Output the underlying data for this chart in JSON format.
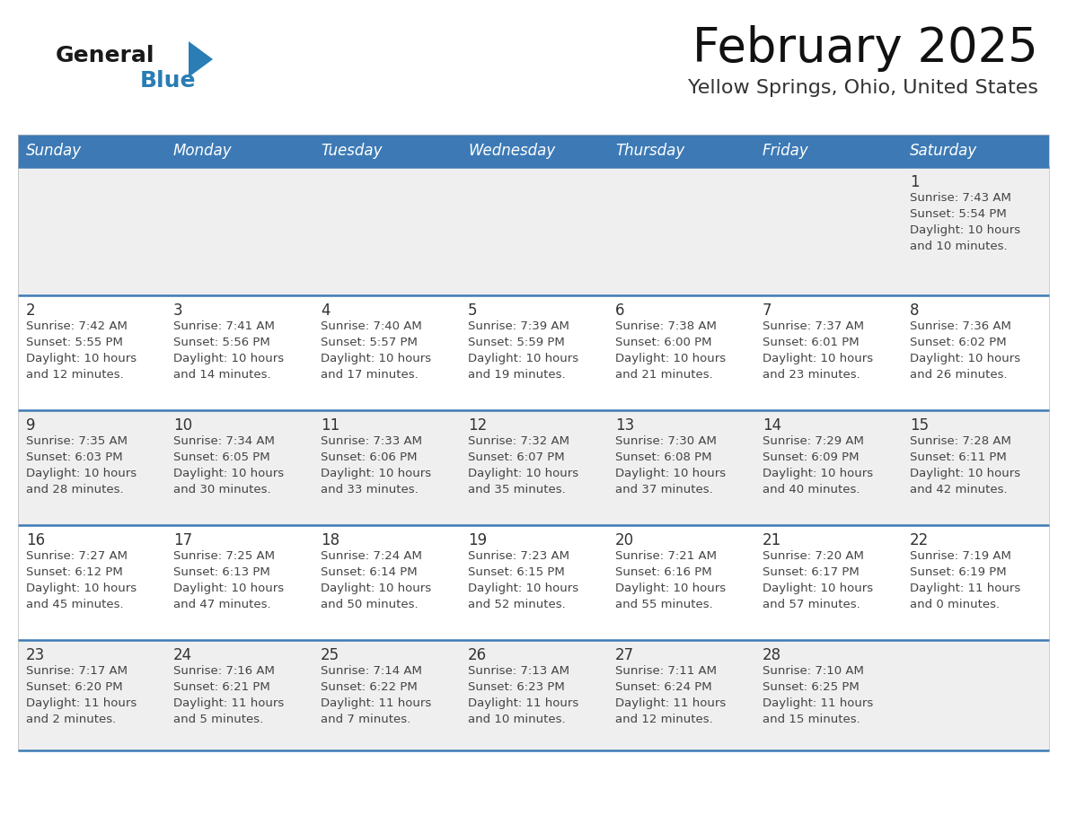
{
  "title": "February 2025",
  "subtitle": "Yellow Springs, Ohio, United States",
  "days_of_week": [
    "Sunday",
    "Monday",
    "Tuesday",
    "Wednesday",
    "Thursday",
    "Friday",
    "Saturday"
  ],
  "header_bg": "#3d7ab5",
  "header_text_color": "#ffffff",
  "row_bg_odd": "#efefef",
  "row_bg_even": "#ffffff",
  "cell_text_color": "#444444",
  "day_number_color": "#333333",
  "divider_color": "#3d7ab5",
  "logo_general_color": "#1a1a1a",
  "logo_blue_color": "#2a7db5",
  "fig_width": 11.88,
  "fig_height": 9.18,
  "dpi": 100,
  "calendar_data": [
    [
      {
        "day": null,
        "info": null
      },
      {
        "day": null,
        "info": null
      },
      {
        "day": null,
        "info": null
      },
      {
        "day": null,
        "info": null
      },
      {
        "day": null,
        "info": null
      },
      {
        "day": null,
        "info": null
      },
      {
        "day": 1,
        "info": "Sunrise: 7:43 AM\nSunset: 5:54 PM\nDaylight: 10 hours\nand 10 minutes."
      }
    ],
    [
      {
        "day": 2,
        "info": "Sunrise: 7:42 AM\nSunset: 5:55 PM\nDaylight: 10 hours\nand 12 minutes."
      },
      {
        "day": 3,
        "info": "Sunrise: 7:41 AM\nSunset: 5:56 PM\nDaylight: 10 hours\nand 14 minutes."
      },
      {
        "day": 4,
        "info": "Sunrise: 7:40 AM\nSunset: 5:57 PM\nDaylight: 10 hours\nand 17 minutes."
      },
      {
        "day": 5,
        "info": "Sunrise: 7:39 AM\nSunset: 5:59 PM\nDaylight: 10 hours\nand 19 minutes."
      },
      {
        "day": 6,
        "info": "Sunrise: 7:38 AM\nSunset: 6:00 PM\nDaylight: 10 hours\nand 21 minutes."
      },
      {
        "day": 7,
        "info": "Sunrise: 7:37 AM\nSunset: 6:01 PM\nDaylight: 10 hours\nand 23 minutes."
      },
      {
        "day": 8,
        "info": "Sunrise: 7:36 AM\nSunset: 6:02 PM\nDaylight: 10 hours\nand 26 minutes."
      }
    ],
    [
      {
        "day": 9,
        "info": "Sunrise: 7:35 AM\nSunset: 6:03 PM\nDaylight: 10 hours\nand 28 minutes."
      },
      {
        "day": 10,
        "info": "Sunrise: 7:34 AM\nSunset: 6:05 PM\nDaylight: 10 hours\nand 30 minutes."
      },
      {
        "day": 11,
        "info": "Sunrise: 7:33 AM\nSunset: 6:06 PM\nDaylight: 10 hours\nand 33 minutes."
      },
      {
        "day": 12,
        "info": "Sunrise: 7:32 AM\nSunset: 6:07 PM\nDaylight: 10 hours\nand 35 minutes."
      },
      {
        "day": 13,
        "info": "Sunrise: 7:30 AM\nSunset: 6:08 PM\nDaylight: 10 hours\nand 37 minutes."
      },
      {
        "day": 14,
        "info": "Sunrise: 7:29 AM\nSunset: 6:09 PM\nDaylight: 10 hours\nand 40 minutes."
      },
      {
        "day": 15,
        "info": "Sunrise: 7:28 AM\nSunset: 6:11 PM\nDaylight: 10 hours\nand 42 minutes."
      }
    ],
    [
      {
        "day": 16,
        "info": "Sunrise: 7:27 AM\nSunset: 6:12 PM\nDaylight: 10 hours\nand 45 minutes."
      },
      {
        "day": 17,
        "info": "Sunrise: 7:25 AM\nSunset: 6:13 PM\nDaylight: 10 hours\nand 47 minutes."
      },
      {
        "day": 18,
        "info": "Sunrise: 7:24 AM\nSunset: 6:14 PM\nDaylight: 10 hours\nand 50 minutes."
      },
      {
        "day": 19,
        "info": "Sunrise: 7:23 AM\nSunset: 6:15 PM\nDaylight: 10 hours\nand 52 minutes."
      },
      {
        "day": 20,
        "info": "Sunrise: 7:21 AM\nSunset: 6:16 PM\nDaylight: 10 hours\nand 55 minutes."
      },
      {
        "day": 21,
        "info": "Sunrise: 7:20 AM\nSunset: 6:17 PM\nDaylight: 10 hours\nand 57 minutes."
      },
      {
        "day": 22,
        "info": "Sunrise: 7:19 AM\nSunset: 6:19 PM\nDaylight: 11 hours\nand 0 minutes."
      }
    ],
    [
      {
        "day": 23,
        "info": "Sunrise: 7:17 AM\nSunset: 6:20 PM\nDaylight: 11 hours\nand 2 minutes."
      },
      {
        "day": 24,
        "info": "Sunrise: 7:16 AM\nSunset: 6:21 PM\nDaylight: 11 hours\nand 5 minutes."
      },
      {
        "day": 25,
        "info": "Sunrise: 7:14 AM\nSunset: 6:22 PM\nDaylight: 11 hours\nand 7 minutes."
      },
      {
        "day": 26,
        "info": "Sunrise: 7:13 AM\nSunset: 6:23 PM\nDaylight: 11 hours\nand 10 minutes."
      },
      {
        "day": 27,
        "info": "Sunrise: 7:11 AM\nSunset: 6:24 PM\nDaylight: 11 hours\nand 12 minutes."
      },
      {
        "day": 28,
        "info": "Sunrise: 7:10 AM\nSunset: 6:25 PM\nDaylight: 11 hours\nand 15 minutes."
      },
      {
        "day": null,
        "info": null
      }
    ]
  ]
}
